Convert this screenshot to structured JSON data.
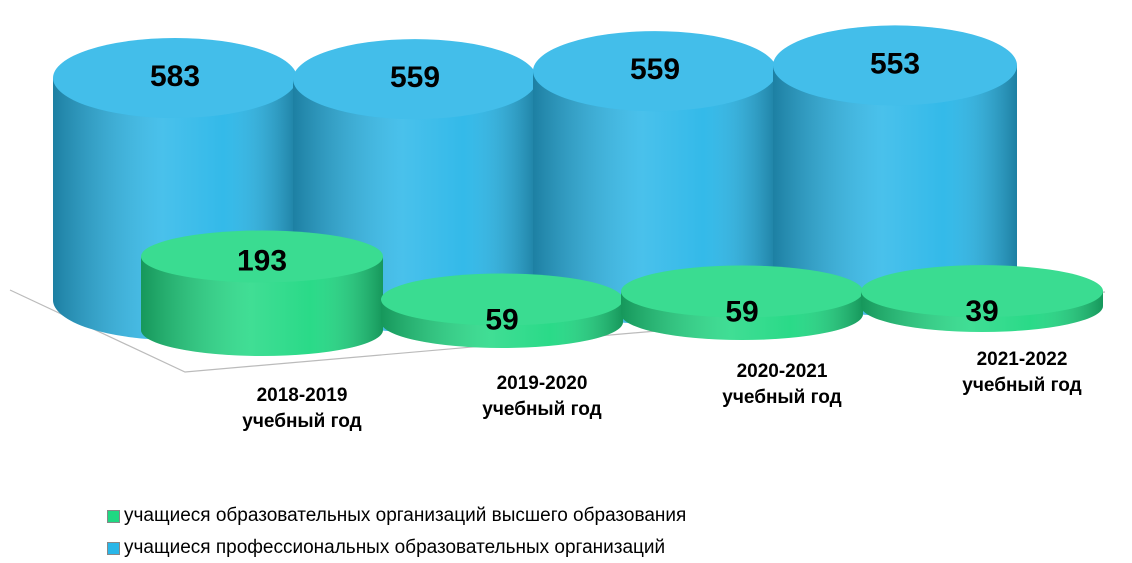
{
  "chart_data": {
    "type": "cylinder",
    "categories": [
      "2018-2019 учебный год",
      "2019-2020 учебный год",
      "2020-2021 учебный год",
      "2021-2022 учебный год"
    ],
    "series": [
      {
        "name": "учащиеся образовательных организаций высшего образования",
        "color": "#1fd882",
        "values": [
          193,
          59,
          59,
          39
        ]
      },
      {
        "name": "учащиеся профессиональных образовательных организаций",
        "color": "#29b6e8",
        "values": [
          583,
          559,
          559,
          553
        ]
      }
    ]
  }
}
